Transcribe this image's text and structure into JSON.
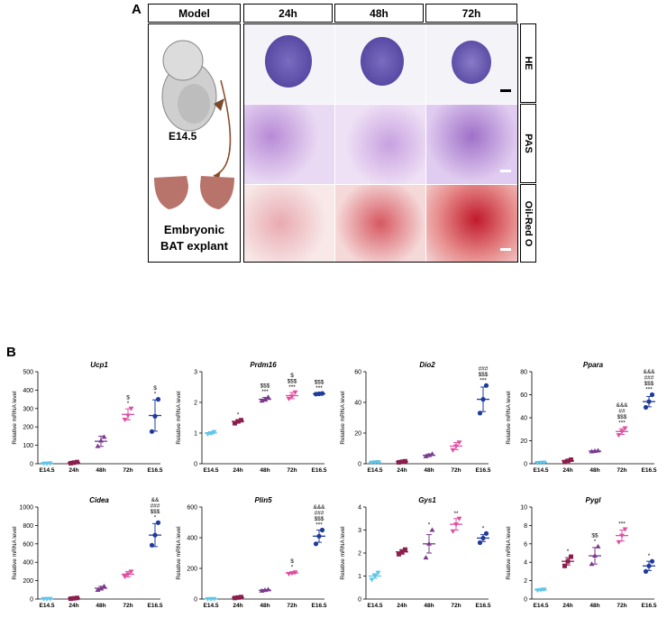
{
  "panel_a": {
    "letter": "A",
    "headers": [
      "Model",
      "24h",
      "48h",
      "72h"
    ],
    "stains": [
      "HE",
      "PAS",
      "Oil-Red O"
    ],
    "model_stage": "E14.5",
    "model_caption_1": "Embryonic",
    "model_caption_2": "BAT explant",
    "colors": {
      "he": "#5a4aa8",
      "pas": "#c9a3e0",
      "oil": "#c8192a",
      "explant": "#b8746a"
    }
  },
  "panel_b": {
    "letter": "B"
  },
  "chart_data": [
    {
      "type": "scatter",
      "title": "Ucp1",
      "ylabel": "Relative mRNA level",
      "categories": [
        "E14.5",
        "24h",
        "48h",
        "72h",
        "E16.5"
      ],
      "ylim": [
        0,
        500
      ],
      "yticks": [
        0,
        100,
        200,
        300,
        400,
        500
      ],
      "means": [
        2,
        6,
        122,
        268,
        262
      ],
      "sem": [
        1,
        3,
        28,
        30,
        85
      ],
      "points": [
        [
          1,
          2,
          3
        ],
        [
          3,
          6,
          9
        ],
        [
          95,
          125,
          145
        ],
        [
          240,
          262,
          300
        ],
        [
          175,
          258,
          350
        ]
      ],
      "annotations": [
        "",
        "",
        "",
        "*\n$",
        "*\n$"
      ]
    },
    {
      "type": "scatter",
      "title": "Prdm16",
      "ylabel": "Relative mRNA level",
      "categories": [
        "E14.5",
        "24h",
        "48h",
        "72h",
        "E16.5"
      ],
      "ylim": [
        0,
        3
      ],
      "yticks": [
        0,
        1,
        2,
        3
      ],
      "means": [
        1.0,
        1.38,
        2.1,
        2.22,
        2.28
      ],
      "sem": [
        0.04,
        0.05,
        0.06,
        0.1,
        0.02
      ],
      "points": [
        [
          0.97,
          1.0,
          1.04
        ],
        [
          1.32,
          1.38,
          1.42
        ],
        [
          2.05,
          2.1,
          2.17
        ],
        [
          2.12,
          2.2,
          2.33
        ],
        [
          2.27,
          2.28,
          2.29
        ]
      ],
      "annotations": [
        "",
        "*",
        "***\n$$$",
        "***\n$$$\n$",
        "***\n$$$"
      ]
    },
    {
      "type": "scatter",
      "title": "Dio2",
      "ylabel": "Relative mRNA level",
      "categories": [
        "E14.5",
        "24h",
        "48h",
        "72h",
        "E16.5"
      ],
      "ylim": [
        0,
        60
      ],
      "yticks": [
        0,
        20,
        40,
        60
      ],
      "means": [
        1,
        1.3,
        5.5,
        11.5,
        42
      ],
      "sem": [
        0.2,
        0.3,
        0.8,
        2.3,
        8
      ],
      "points": [
        [
          0.8,
          1,
          1.2
        ],
        [
          0.9,
          1.3,
          1.6
        ],
        [
          4.8,
          5.5,
          6.3
        ],
        [
          9,
          11.5,
          14
        ],
        [
          33,
          42,
          51
        ]
      ],
      "annotations": [
        "",
        "",
        "",
        "",
        "***\n$$$\n###"
      ]
    },
    {
      "type": "scatter",
      "title": "Ppara",
      "ylabel": "Relative mRNA level",
      "categories": [
        "E14.5",
        "24h",
        "48h",
        "72h",
        "E16.5"
      ],
      "ylim": [
        0,
        80
      ],
      "yticks": [
        0,
        20,
        40,
        60,
        80
      ],
      "means": [
        1,
        2.5,
        11,
        28,
        54
      ],
      "sem": [
        0.2,
        1,
        0.4,
        2.5,
        4.5
      ],
      "points": [
        [
          0.8,
          1,
          1.2
        ],
        [
          1.5,
          2.5,
          3.5
        ],
        [
          10.6,
          11,
          11.4
        ],
        [
          25,
          28,
          31
        ],
        [
          49,
          54,
          60
        ]
      ],
      "annotations": [
        "",
        "",
        "",
        "***\n$$$\n##\n&&&",
        "***\n$$$\n###\n&&&"
      ]
    },
    {
      "type": "scatter",
      "title": "Cidea",
      "ylabel": "Relative mRNA level",
      "categories": [
        "E14.5",
        "24h",
        "48h",
        "72h",
        "E16.5"
      ],
      "ylim": [
        0,
        1000
      ],
      "yticks": [
        0,
        200,
        400,
        600,
        800,
        1000
      ],
      "means": [
        3,
        8,
        118,
        270,
        695
      ],
      "sem": [
        1,
        4,
        20,
        30,
        125
      ],
      "points": [
        [
          2,
          3,
          4
        ],
        [
          4,
          8,
          12
        ],
        [
          98,
          118,
          138
        ],
        [
          245,
          270,
          300
        ],
        [
          585,
          695,
          830
        ]
      ],
      "annotations": [
        "",
        "",
        "",
        "",
        "*\n$$$\n###\n&&"
      ]
    },
    {
      "type": "scatter",
      "title": "Plin5",
      "ylabel": "Relative mRNA level",
      "categories": [
        "E14.5",
        "24h",
        "48h",
        "72h",
        "E16.5"
      ],
      "ylim": [
        0,
        600
      ],
      "yticks": [
        0,
        200,
        400,
        600
      ],
      "means": [
        1,
        10,
        58,
        170,
        410
      ],
      "sem": [
        0.5,
        3,
        4,
        5,
        40
      ],
      "points": [
        [
          0.5,
          1,
          1.5
        ],
        [
          7,
          10,
          13
        ],
        [
          54,
          58,
          62
        ],
        [
          165,
          170,
          175
        ],
        [
          360,
          410,
          450
        ]
      ],
      "annotations": [
        "",
        "",
        "",
        "*\n$",
        "***\n$$$\n###\n&&&"
      ]
    },
    {
      "type": "scatter",
      "title": "Gys1",
      "ylabel": "Relative mRNA level",
      "categories": [
        "E14.5",
        "24h",
        "48h",
        "72h",
        "E16.5"
      ],
      "ylim": [
        0,
        4
      ],
      "yticks": [
        0,
        1,
        2,
        3,
        4
      ],
      "means": [
        1.0,
        2.05,
        2.4,
        3.25,
        2.65
      ],
      "sem": [
        0.1,
        0.1,
        0.4,
        0.25,
        0.15
      ],
      "points": [
        [
          0.85,
          1.0,
          1.15
        ],
        [
          1.95,
          2.05,
          2.15
        ],
        [
          1.8,
          2.4,
          3.0
        ],
        [
          2.95,
          3.25,
          3.5
        ],
        [
          2.45,
          2.65,
          2.85
        ]
      ],
      "annotations": [
        "",
        "",
        "*",
        "**",
        "*"
      ]
    },
    {
      "type": "scatter",
      "title": "Pygl",
      "ylabel": "Relative mRNA level",
      "categories": [
        "E14.5",
        "24h",
        "48h",
        "72h",
        "E16.5"
      ],
      "ylim": [
        0,
        10
      ],
      "yticks": [
        0,
        2,
        4,
        6,
        8,
        10
      ],
      "means": [
        1.0,
        4.1,
        4.7,
        6.9,
        3.6
      ],
      "sem": [
        0.05,
        0.4,
        0.9,
        0.6,
        0.5
      ],
      "points": [
        [
          0.95,
          1.0,
          1.05
        ],
        [
          3.6,
          4.1,
          4.6
        ],
        [
          3.8,
          4.7,
          5.7
        ],
        [
          6.2,
          6.9,
          7.6
        ],
        [
          3.0,
          3.6,
          4.1
        ]
      ],
      "annotations": [
        "",
        "*",
        "*\n$$",
        "***",
        "*"
      ]
    }
  ],
  "series_colors": [
    "#5fc4e8",
    "#8b1e4e",
    "#7b3a8e",
    "#e04ea0",
    "#1f3a9c"
  ]
}
